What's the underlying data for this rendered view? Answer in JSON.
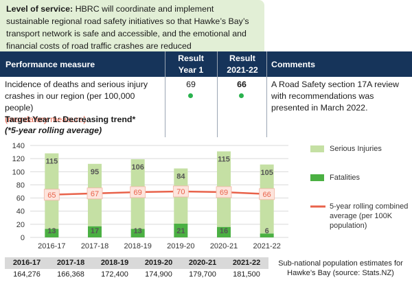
{
  "level_of_service": {
    "label": "Level of service:",
    "text": " HBRC will coordinate and implement sustainable regional road safety initiatives so that Hawke’s Bay’s transport network is safe and accessible, and the emotional and financial costs of road traffic crashes are reduced"
  },
  "header": {
    "measure": "Performance measure",
    "result1_line1": "Result",
    "result1_line2": "Year 1",
    "result2_line1": "Result",
    "result2_line2": "2021-22",
    "comments": "Comments"
  },
  "row": {
    "measure": "Incidence of deaths and serious injury crashes in our region (per 100,000 people)",
    "mandatory": "(mandatory measure)",
    "target": "Target Year 1: Decreasing trend*",
    "footnote": "(*5-year rolling average)",
    "result_year1": "69",
    "result_2122": "66",
    "status_color": "#2ab24e",
    "comment": "A Road Safety section 17A review with recommendations was presented in March 2022."
  },
  "chart_data": {
    "type": "bar",
    "categories": [
      "2016-17",
      "2017-18",
      "2018-19",
      "2019-20",
      "2020-21",
      "2021-22"
    ],
    "series": [
      {
        "name": "Serious Injuries",
        "values": [
          115,
          95,
          106,
          84,
          115,
          105
        ],
        "color": "#c5e0a4"
      },
      {
        "name": "Fatalities",
        "values": [
          13,
          17,
          13,
          21,
          16,
          6
        ],
        "color": "#4bb043"
      },
      {
        "name": "5-year rolling combined average (per 100K population)",
        "values": [
          65,
          67,
          69,
          70,
          69,
          66
        ],
        "color": "#e8624a",
        "type": "line"
      }
    ],
    "stacked": true,
    "yticks": [
      "0",
      "20",
      "40",
      "60",
      "80",
      "100",
      "120",
      "140"
    ],
    "ylim": [
      0,
      140
    ],
    "grid": true,
    "legend": "right"
  },
  "legend": {
    "serious": "Serious Injuries",
    "fatal": "Fatalities",
    "avg_line1": "5-year rolling combined",
    "avg_line2": "average (per 100K",
    "avg_line3": "population)"
  },
  "population": {
    "years": [
      "2016-17",
      "2017-18",
      "2018-19",
      "2019-20",
      "2020-21",
      "2021-22"
    ],
    "values": [
      "164,276",
      "166,368",
      "172,400",
      "174,900",
      "179,700",
      "181,500"
    ],
    "source": "Sub-national population estimates for Hawke’s Bay (source: Stats.NZ)"
  }
}
